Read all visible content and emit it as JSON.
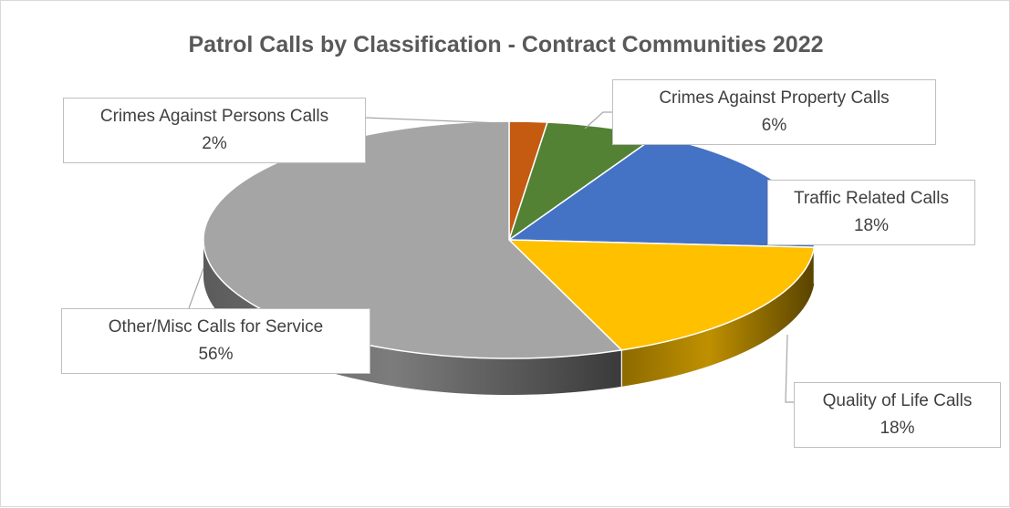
{
  "chart_data": {
    "type": "pie",
    "title": "Patrol Calls by Classification - Contract Communities 2022",
    "slices": [
      {
        "label": "Crimes Against Persons Calls",
        "value": 2,
        "value_label": "2%",
        "color": "#c55a11"
      },
      {
        "label": "Crimes Against Property Calls",
        "value": 6,
        "value_label": "6%",
        "color": "#548235"
      },
      {
        "label": "Traffic Related Calls",
        "value": 18,
        "value_label": "18%",
        "color": "#4472c4"
      },
      {
        "label": "Quality of Life Calls",
        "value": 18,
        "value_label": "18%",
        "color": "#ffc000"
      },
      {
        "label": "Other/Misc Calls for Service",
        "value": 56,
        "value_label": "56%",
        "color": "#a5a5a5"
      }
    ],
    "legend": "none",
    "style": "3d"
  }
}
